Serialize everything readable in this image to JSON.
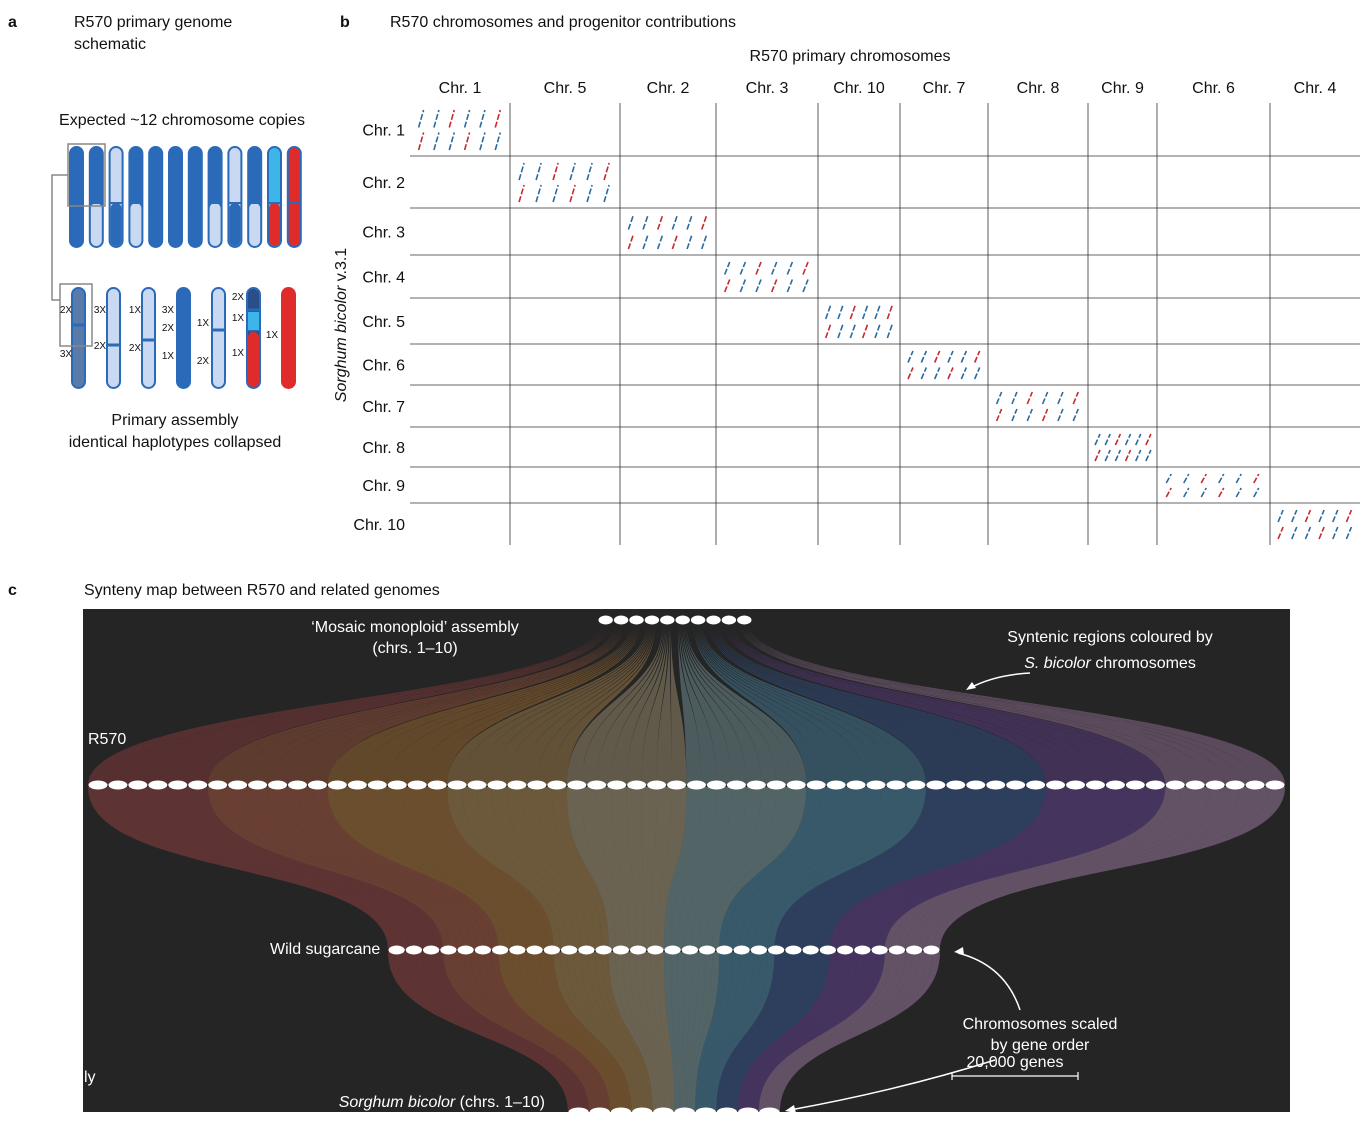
{
  "panel_a": {
    "letter": "a",
    "title": [
      "R570 primary genome",
      "schematic"
    ],
    "subtitle": "Expected ~12 chromosome copies",
    "copy_labels": [
      "2X",
      "3X",
      "3X",
      "2X",
      "1X",
      "2X",
      "3X",
      "2X",
      "1X",
      "1X",
      "2X",
      "2X",
      "1X",
      "1X",
      "1X"
    ],
    "caption": [
      "Primary assembly",
      "identical haplotypes collapsed"
    ]
  },
  "panel_b": {
    "letter": "b",
    "title": "R570 chromosomes and progenitor contributions",
    "column_header": "R570 primary chromosomes",
    "columns": [
      "Chr. 1",
      "Chr. 5",
      "Chr. 2",
      "Chr. 3",
      "Chr. 10",
      "Chr. 7",
      "Chr. 8",
      "Chr. 9",
      "Chr. 6",
      "Chr. 4"
    ],
    "rows": [
      "Chr. 1",
      "Chr. 2",
      "Chr. 3",
      "Chr. 4",
      "Chr. 5",
      "Chr. 6",
      "Chr. 7",
      "Chr. 8",
      "Chr. 9",
      "Chr. 10"
    ],
    "row_axis_label": {
      "italic": "Sorghum bicolor",
      "plain": " v.3.1"
    }
  },
  "panel_c": {
    "letter": "c",
    "title": "Synteny map between R570 and related genomes",
    "mosaic_label": [
      "‘Mosaic monoploid’ assembly",
      "(chrs. 1–10)"
    ],
    "syntenic_note": {
      "line1": "Syntenic regions coloured by",
      "italic": "S. bicolor",
      "plain": " chromosomes"
    },
    "r570_label": "R570",
    "wild_label": "Wild sugarcane",
    "scaled_note": [
      "Chromosomes scaled",
      "by gene order"
    ],
    "scale_bar": "20,000 genes",
    "sorghum_label": {
      "italic": "Sorghum bicolor",
      "plain": " (chrs. 1–10)"
    },
    "partial_text": "ly"
  }
}
